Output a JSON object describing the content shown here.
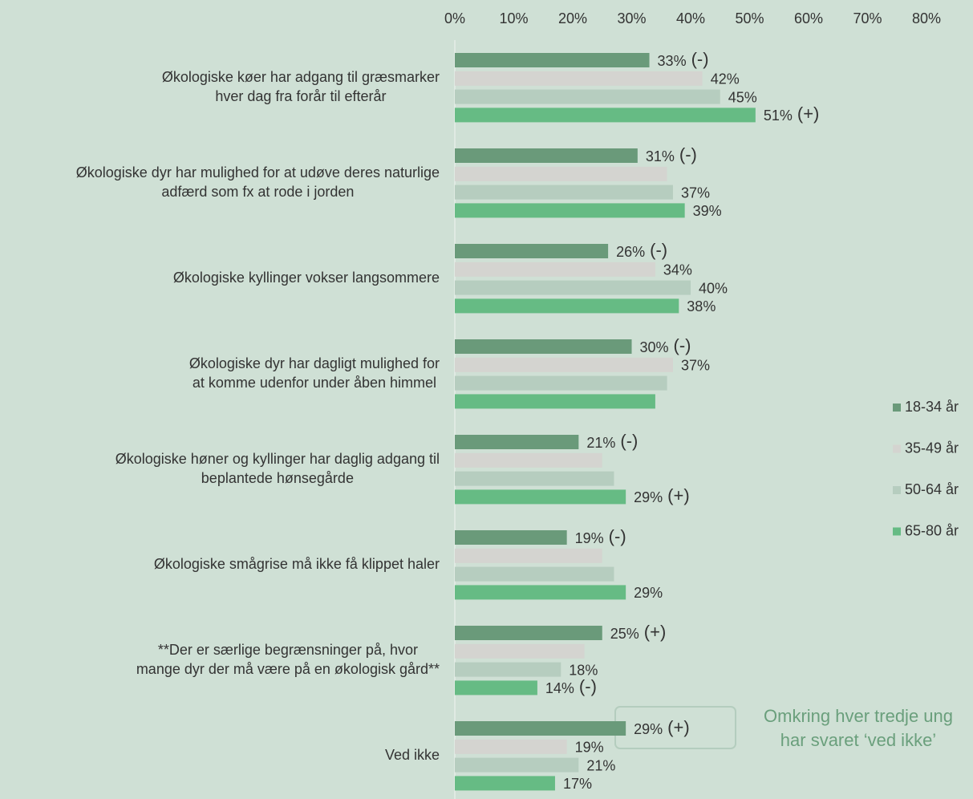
{
  "chart_data": {
    "type": "bar",
    "orientation": "horizontal",
    "categories": [
      [
        "Økologiske køer har adgang til græsmarker",
        "hver dag fra forår til efterår"
      ],
      [
        "Økologiske dyr har mulighed for at udøve deres naturlige",
        "adfærd som fx at rode i jorden"
      ],
      [
        "Økologiske kyllinger vokser langsommere"
      ],
      [
        "Økologiske dyr har dagligt mulighed for",
        "at komme udenfor under åben himmel"
      ],
      [
        "Økologiske høner og kyllinger har daglig adgang til",
        "beplantede hønsegårde"
      ],
      [
        "Økologiske smågrise må ikke få klippet haler"
      ],
      [
        "**Der er særlige begrænsninger på, hvor",
        "mange dyr der må være på en økologisk gård**"
      ],
      [
        "Ved ikke"
      ]
    ],
    "series": [
      {
        "name": "18-34 år",
        "color": "#6a9a7a",
        "values": [
          33,
          31,
          26,
          30,
          21,
          19,
          25,
          29
        ],
        "value_labels": [
          "33%",
          "31%",
          "26%",
          "30%",
          "21%",
          "19%",
          "25%",
          "29%"
        ],
        "markers": [
          "(-)",
          "(-)",
          "(-)",
          "(-)",
          "(-)",
          "(-)",
          "(+)",
          "(+)"
        ]
      },
      {
        "name": "35-49 år",
        "color": "#d4d4d0",
        "values": [
          42,
          36,
          34,
          37,
          25,
          25,
          22,
          19
        ],
        "value_labels": [
          "42%",
          null,
          "34%",
          "37%",
          null,
          null,
          null,
          "19%"
        ],
        "markers": [
          null,
          null,
          null,
          null,
          null,
          null,
          null,
          null
        ]
      },
      {
        "name": "50-64 år",
        "color": "#b6cdbf",
        "values": [
          45,
          37,
          40,
          36,
          27,
          27,
          18,
          21
        ],
        "value_labels": [
          "45%",
          "37%",
          "40%",
          null,
          null,
          null,
          "18%",
          "21%"
        ],
        "markers": [
          null,
          null,
          null,
          null,
          null,
          null,
          null,
          null
        ]
      },
      {
        "name": "65-80 år",
        "color": "#66bb84",
        "values": [
          51,
          39,
          38,
          34,
          29,
          29,
          14,
          17
        ],
        "value_labels": [
          "51%",
          "39%",
          "38%",
          null,
          "29%",
          "29%",
          "14%",
          "17%"
        ],
        "markers": [
          "(+)",
          null,
          null,
          null,
          "(+)",
          null,
          "(-)",
          null
        ]
      }
    ],
    "xlim": [
      0,
      80
    ],
    "xticks": [
      {
        "value": 0,
        "label": "0%"
      },
      {
        "value": 10,
        "label": "10%"
      },
      {
        "value": 20,
        "label": "20%"
      },
      {
        "value": 30,
        "label": "30%"
      },
      {
        "value": 40,
        "label": "40%"
      },
      {
        "value": 50,
        "label": "50%"
      },
      {
        "value": 60,
        "label": "60%"
      },
      {
        "value": 70,
        "label": "70%"
      },
      {
        "value": 80,
        "label": "80%"
      }
    ],
    "legend": "right",
    "annotation": [
      "Omkring hver tredje ung",
      "har svaret ‘ved ikke’"
    ]
  }
}
